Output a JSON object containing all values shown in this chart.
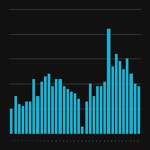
{
  "values": [
    5.0,
    7.5,
    6.0,
    5.5,
    6.5,
    6.5,
    11.0,
    7.5,
    10.5,
    11.5,
    12.0,
    9.5,
    11.0,
    11.0,
    9.5,
    9.0,
    8.5,
    8.0,
    7.0,
    1.5,
    6.5,
    10.0,
    7.5,
    9.5,
    9.5,
    10.5,
    21.0,
    13.5,
    16.0,
    14.5,
    13.0,
    15.0,
    12.0,
    10.0,
    9.5
  ],
  "bar_color": "#1AAFCE",
  "bg_color": "#111111",
  "grid_color": "#444444",
  "ylim": [
    0,
    25
  ],
  "grid_step": 5,
  "fig_bg": "#111111"
}
